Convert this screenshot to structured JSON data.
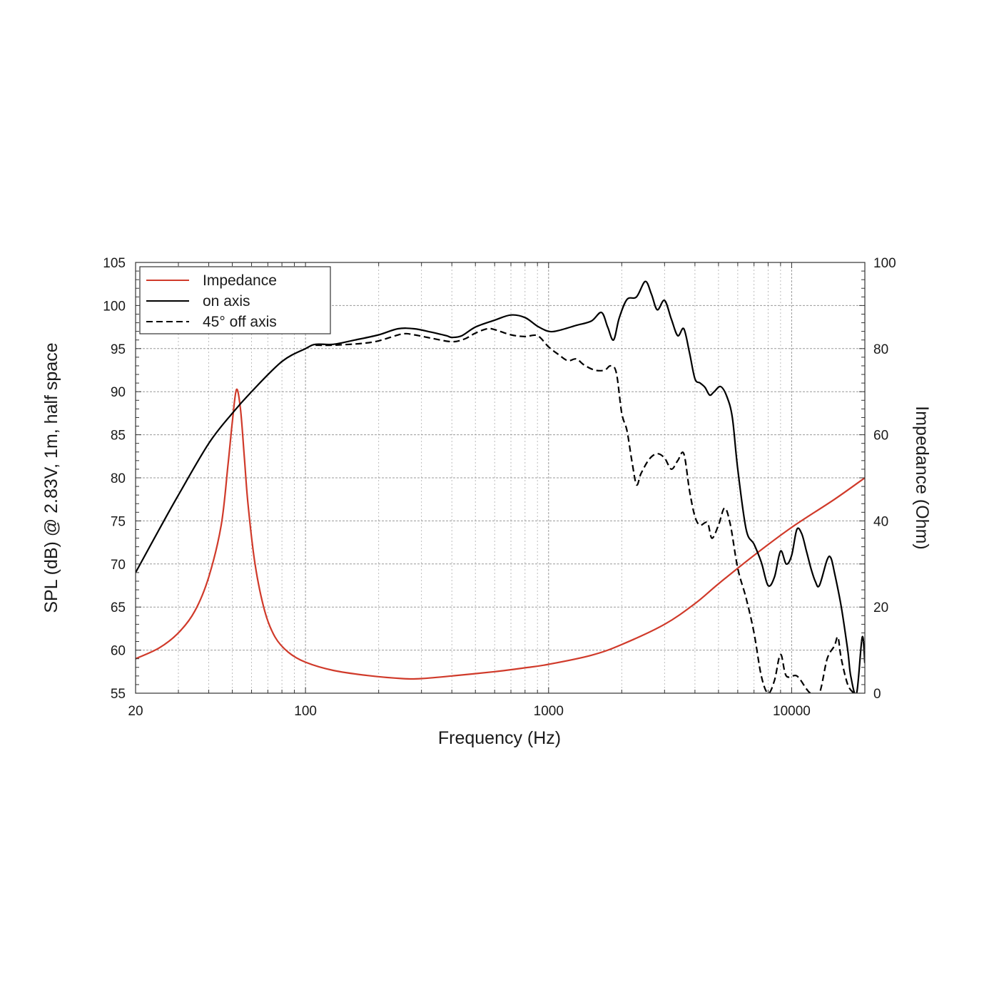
{
  "chart_data": {
    "type": "line",
    "xlabel": "Frequency (Hz)",
    "ylabel_left": "SPL (dB) @ 2.83V, 1m, half space",
    "ylabel_right": "Impedance (Ohm)",
    "x_scale": "log",
    "xlim": [
      20,
      20000
    ],
    "ylim_left": [
      55,
      105
    ],
    "ylim_right": [
      0,
      100
    ],
    "x_ticks": [
      {
        "value": 20,
        "label": "20"
      },
      {
        "value": 100,
        "label": "100"
      },
      {
        "value": 1000,
        "label": "1000"
      },
      {
        "value": 10000,
        "label": "10000"
      }
    ],
    "y_ticks_left": [
      {
        "value": 105,
        "label": "105"
      },
      {
        "value": 100,
        "label": "100"
      },
      {
        "value": 95,
        "label": "95"
      },
      {
        "value": 90,
        "label": "90"
      },
      {
        "value": 85,
        "label": "85"
      },
      {
        "value": 80,
        "label": "80"
      },
      {
        "value": 75,
        "label": "75"
      },
      {
        "value": 70,
        "label": "70"
      },
      {
        "value": 65,
        "label": "65"
      },
      {
        "value": 60,
        "label": "60"
      },
      {
        "value": 55,
        "label": "55"
      }
    ],
    "y_ticks_right": [
      {
        "value": 100,
        "label": "100"
      },
      {
        "value": 80,
        "label": "80"
      },
      {
        "value": 60,
        "label": "60"
      },
      {
        "value": 40,
        "label": "40"
      },
      {
        "value": 20,
        "label": "20"
      },
      {
        "value": 0,
        "label": "0"
      }
    ],
    "grid": true,
    "legend_position": "top-left",
    "series": [
      {
        "name": "Impedance",
        "axis": "right",
        "color": "#d03a2a",
        "style": "solid",
        "points": [
          [
            20,
            8
          ],
          [
            25,
            10.5
          ],
          [
            30,
            14
          ],
          [
            35,
            19
          ],
          [
            40,
            27
          ],
          [
            45,
            39
          ],
          [
            48,
            53
          ],
          [
            50,
            63
          ],
          [
            52,
            70.5
          ],
          [
            54,
            66
          ],
          [
            56,
            55
          ],
          [
            58,
            44
          ],
          [
            62,
            30
          ],
          [
            68,
            19
          ],
          [
            75,
            13
          ],
          [
            85,
            9.5
          ],
          [
            100,
            7.2
          ],
          [
            130,
            5.3
          ],
          [
            180,
            4.1
          ],
          [
            250,
            3.4
          ],
          [
            300,
            3.4
          ],
          [
            400,
            4
          ],
          [
            600,
            5
          ],
          [
            800,
            5.9
          ],
          [
            1000,
            6.7
          ],
          [
            1500,
            8.8
          ],
          [
            2000,
            11.3
          ],
          [
            3000,
            16
          ],
          [
            4000,
            20.8
          ],
          [
            5000,
            25.4
          ],
          [
            7000,
            32
          ],
          [
            10000,
            38.5
          ],
          [
            15000,
            45
          ],
          [
            20000,
            50
          ]
        ]
      },
      {
        "name": "on axis",
        "axis": "left",
        "color": "#000000",
        "style": "solid",
        "points": [
          [
            20,
            69
          ],
          [
            25,
            74
          ],
          [
            30,
            78
          ],
          [
            40,
            84
          ],
          [
            50,
            87.5
          ],
          [
            60,
            90
          ],
          [
            80,
            93.5
          ],
          [
            100,
            95
          ],
          [
            110,
            95.5
          ],
          [
            130,
            95.5
          ],
          [
            160,
            96
          ],
          [
            200,
            96.6
          ],
          [
            240,
            97.3
          ],
          [
            280,
            97.3
          ],
          [
            330,
            96.9
          ],
          [
            380,
            96.5
          ],
          [
            400,
            96.3
          ],
          [
            440,
            96.5
          ],
          [
            500,
            97.5
          ],
          [
            600,
            98.3
          ],
          [
            700,
            98.9
          ],
          [
            800,
            98.6
          ],
          [
            900,
            97.6
          ],
          [
            1000,
            97
          ],
          [
            1100,
            97.1
          ],
          [
            1300,
            97.7
          ],
          [
            1500,
            98.2
          ],
          [
            1650,
            99.2
          ],
          [
            1750,
            97.5
          ],
          [
            1850,
            96
          ],
          [
            1950,
            98.5
          ],
          [
            2100,
            100.7
          ],
          [
            2300,
            101
          ],
          [
            2500,
            102.8
          ],
          [
            2650,
            101.3
          ],
          [
            2800,
            99.5
          ],
          [
            3000,
            100.6
          ],
          [
            3200,
            98.4
          ],
          [
            3400,
            96.5
          ],
          [
            3600,
            97.3
          ],
          [
            3800,
            94.5
          ],
          [
            4000,
            91.5
          ],
          [
            4200,
            91
          ],
          [
            4400,
            90.5
          ],
          [
            4600,
            89.6
          ],
          [
            4800,
            90
          ],
          [
            5100,
            90.6
          ],
          [
            5400,
            89.5
          ],
          [
            5700,
            87
          ],
          [
            6000,
            81
          ],
          [
            6500,
            74
          ],
          [
            7000,
            72.3
          ],
          [
            7500,
            70.2
          ],
          [
            8000,
            67.5
          ],
          [
            8500,
            68.5
          ],
          [
            9000,
            71.5
          ],
          [
            9500,
            70
          ],
          [
            10000,
            71
          ],
          [
            10500,
            74
          ],
          [
            11000,
            73.5
          ],
          [
            11500,
            71.5
          ],
          [
            12000,
            69.5
          ],
          [
            12500,
            68
          ],
          [
            13000,
            67.5
          ],
          [
            14000,
            70.5
          ],
          [
            14500,
            70.7
          ],
          [
            15000,
            69
          ],
          [
            16000,
            65
          ],
          [
            17000,
            60
          ],
          [
            17500,
            57
          ],
          [
            18500,
            55
          ],
          [
            19500,
            61.5
          ],
          [
            20000,
            58.5
          ]
        ]
      },
      {
        "name": "45° off axis",
        "axis": "left",
        "color": "#000000",
        "style": "dashed",
        "points": [
          [
            110,
            95.4
          ],
          [
            130,
            95.4
          ],
          [
            170,
            95.6
          ],
          [
            200,
            95.9
          ],
          [
            250,
            96.7
          ],
          [
            280,
            96.6
          ],
          [
            330,
            96.2
          ],
          [
            400,
            95.8
          ],
          [
            450,
            96.1
          ],
          [
            500,
            96.8
          ],
          [
            560,
            97.3
          ],
          [
            600,
            97.2
          ],
          [
            700,
            96.6
          ],
          [
            800,
            96.4
          ],
          [
            900,
            96.5
          ],
          [
            1000,
            95.2
          ],
          [
            1100,
            94.3
          ],
          [
            1200,
            93.6
          ],
          [
            1300,
            93.8
          ],
          [
            1400,
            93.1
          ],
          [
            1550,
            92.5
          ],
          [
            1700,
            92.5
          ],
          [
            1800,
            93
          ],
          [
            1900,
            92.2
          ],
          [
            2000,
            87.5
          ],
          [
            2100,
            85.5
          ],
          [
            2200,
            82
          ],
          [
            2300,
            79.2
          ],
          [
            2400,
            80.5
          ],
          [
            2600,
            82.2
          ],
          [
            2800,
            82.8
          ],
          [
            3000,
            82.3
          ],
          [
            3200,
            81
          ],
          [
            3400,
            82
          ],
          [
            3600,
            82.8
          ],
          [
            3800,
            78.5
          ],
          [
            4000,
            75.5
          ],
          [
            4200,
            74.5
          ],
          [
            4500,
            74.8
          ],
          [
            4700,
            73
          ],
          [
            5000,
            74.5
          ],
          [
            5300,
            76.5
          ],
          [
            5600,
            74.5
          ],
          [
            6000,
            69.5
          ],
          [
            6500,
            66
          ],
          [
            7000,
            62
          ],
          [
            7500,
            57
          ],
          [
            8000,
            55
          ],
          [
            8500,
            56.5
          ],
          [
            9000,
            59.5
          ],
          [
            9500,
            57
          ],
          [
            10500,
            57
          ],
          [
            11500,
            55.5
          ],
          [
            12000,
            55
          ],
          [
            13000,
            55
          ],
          [
            14000,
            59
          ],
          [
            15000,
            60.5
          ],
          [
            15500,
            61.5
          ],
          [
            16000,
            59
          ],
          [
            17000,
            56
          ],
          [
            18000,
            55
          ]
        ]
      }
    ]
  }
}
